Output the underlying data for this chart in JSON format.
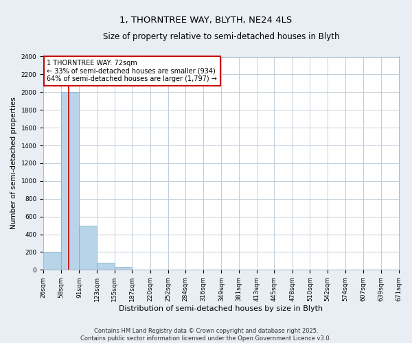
{
  "title": "1, THORNTREE WAY, BLYTH, NE24 4LS",
  "subtitle": "Size of property relative to semi-detached houses in Blyth",
  "xlabel": "Distribution of semi-detached houses by size in Blyth",
  "ylabel": "Number of semi-detached properties",
  "bin_edges": [
    26,
    58,
    91,
    123,
    155,
    187,
    220,
    252,
    284,
    316,
    349,
    381,
    413,
    445,
    478,
    510,
    542,
    574,
    607,
    639,
    671
  ],
  "bar_heights": [
    200,
    2000,
    500,
    80,
    30,
    0,
    0,
    0,
    0,
    0,
    0,
    0,
    0,
    0,
    0,
    0,
    0,
    0,
    0,
    0
  ],
  "bar_color": "#b8d4e8",
  "bar_edge_color": "#7aaaca",
  "property_size": 72,
  "vline_color": "#cc0000",
  "annotation_text": "1 THORNTREE WAY: 72sqm\n← 33% of semi-detached houses are smaller (934)\n64% of semi-detached houses are larger (1,797) →",
  "annotation_box_color": "#ffffff",
  "annotation_box_edge": "#cc0000",
  "ylim": [
    0,
    2400
  ],
  "yticks": [
    0,
    200,
    400,
    600,
    800,
    1000,
    1200,
    1400,
    1600,
    1800,
    2000,
    2200,
    2400
  ],
  "footer1": "Contains HM Land Registry data © Crown copyright and database right 2025.",
  "footer2": "Contains public sector information licensed under the Open Government Licence v3.0.",
  "bg_color": "#e8eef4",
  "plot_bg_color": "#ffffff",
  "grid_color": "#c0cdd8",
  "title_fontsize": 9.5,
  "subtitle_fontsize": 8.5,
  "tick_fontsize": 6.5,
  "xlabel_fontsize": 8,
  "ylabel_fontsize": 7.5,
  "annotation_fontsize": 7,
  "footer_fontsize": 6
}
